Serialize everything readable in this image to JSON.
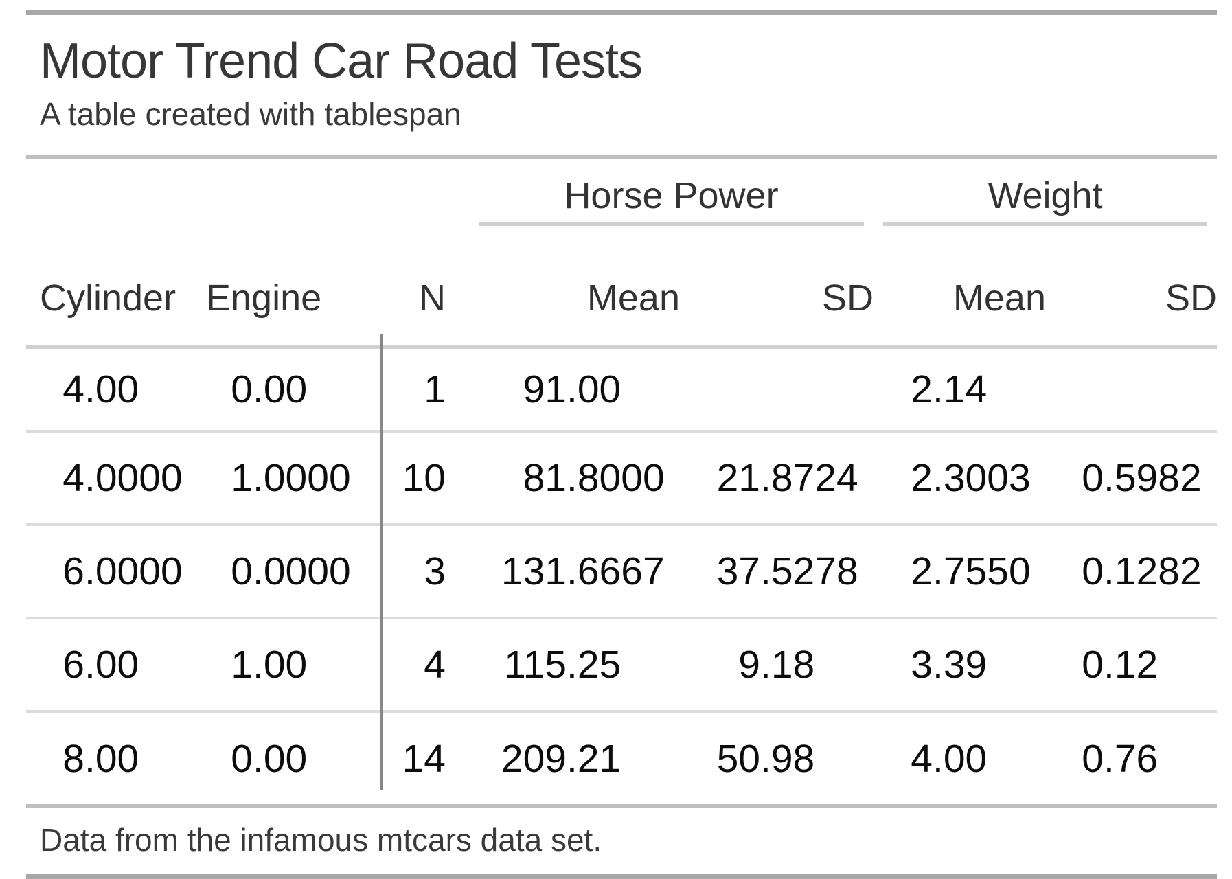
{
  "table": {
    "title": "Motor Trend Car Road Tests",
    "subtitle": "A table created with tablespan",
    "spanners": [
      {
        "label": "Horse Power"
      },
      {
        "label": "Weight"
      }
    ],
    "columns": [
      "Cylinder",
      "Engine",
      "N",
      "Mean",
      "SD",
      "Mean",
      "SD"
    ],
    "rows": [
      {
        "cylinder": "4.00",
        "engine": "0.00",
        "n": "1",
        "hp_mean": "91.00",
        "hp_sd": "",
        "wt_mean": "2.14",
        "wt_sd": ""
      },
      {
        "cylinder": "4.0000",
        "engine": "1.0000",
        "n": "10",
        "hp_mean": "81.8000",
        "hp_sd": "21.8724",
        "wt_mean": "2.3003",
        "wt_sd": "0.5982"
      },
      {
        "cylinder": "6.0000",
        "engine": "0.0000",
        "n": "3",
        "hp_mean": "131.6667",
        "hp_sd": "37.5278",
        "wt_mean": "2.7550",
        "wt_sd": "0.1282"
      },
      {
        "cylinder": "6.00",
        "engine": "1.00",
        "n": "4",
        "hp_mean": "115.25",
        "hp_sd": "9.18",
        "wt_mean": "3.39",
        "wt_sd": "0.12"
      },
      {
        "cylinder": "8.00",
        "engine": "0.00",
        "n": "14",
        "hp_mean": "209.21",
        "hp_sd": "50.98",
        "wt_mean": "4.00",
        "wt_sd": "0.76"
      }
    ],
    "footnote": "Data from the infamous mtcars data set.",
    "colors": {
      "rule_heavy": "#a8a8a8",
      "rule_medium": "#bfbfbf",
      "rule_light": "#dcdcdc",
      "spanner_rule": "#d0d0d0",
      "vertical_divider": "#878787",
      "text_values": "#0c0c0c",
      "text_headings": "#333333"
    }
  },
  "chart_data": {
    "type": "table",
    "title": "Motor Trend Car Road Tests",
    "subtitle": "A table created with tablespan",
    "column_spanners": [
      {
        "label": "Horse Power",
        "columns": [
          "Mean",
          "SD"
        ]
      },
      {
        "label": "Weight",
        "columns": [
          "Mean",
          "SD"
        ]
      }
    ],
    "columns": [
      "Cylinder",
      "Engine",
      "N",
      "Horse Power Mean",
      "Horse Power SD",
      "Weight Mean",
      "Weight SD"
    ],
    "rows": [
      [
        "4.00",
        "0.00",
        "1",
        "91.00",
        "",
        "2.14",
        ""
      ],
      [
        "4.0000",
        "1.0000",
        "10",
        "81.8000",
        "21.8724",
        "2.3003",
        "0.5982"
      ],
      [
        "6.0000",
        "0.0000",
        "3",
        "131.6667",
        "37.5278",
        "2.7550",
        "0.1282"
      ],
      [
        "6.00",
        "1.00",
        "4",
        "115.25",
        "9.18",
        "3.39",
        "0.12"
      ],
      [
        "8.00",
        "0.00",
        "14",
        "209.21",
        "50.98",
        "4.00",
        "0.76"
      ]
    ],
    "footnote": "Data from the infamous mtcars data set."
  }
}
